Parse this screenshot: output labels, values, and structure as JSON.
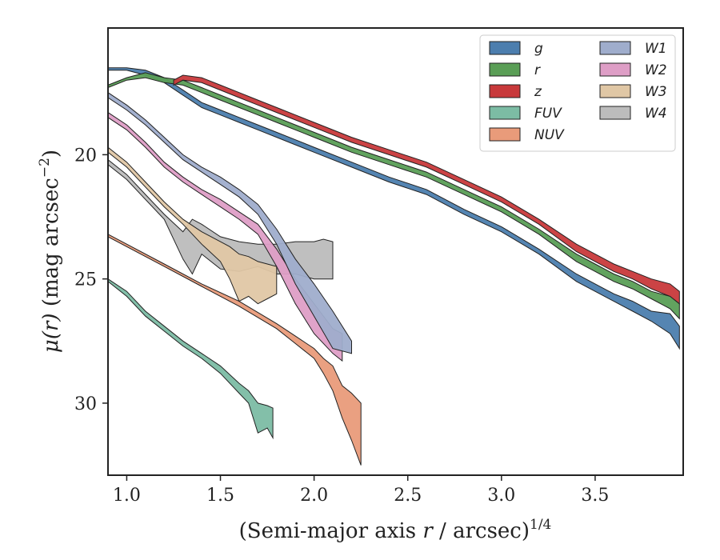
{
  "chart_data": {
    "type": "area",
    "title": "",
    "xlabel_main": "(Semi-major axis ",
    "xlabel_var": "r",
    "xlabel_rest": " / arcsec)",
    "xlabel_sup": "1/4",
    "ylabel_main": "(mag arcsec",
    "ylabel_sup": "−2",
    "ylabel_close": ")",
    "ylabel_mu": "μ(",
    "ylabel_r": "r",
    "ylabel_mu_close": ") ",
    "xlim": [
      0.9,
      3.97
    ],
    "ylim": [
      32.9,
      14.9
    ],
    "y_inverted": true,
    "xticks": [
      1.0,
      1.5,
      2.0,
      2.5,
      3.0,
      3.5
    ],
    "xtick_labels": [
      "1.0",
      "1.5",
      "2.0",
      "2.5",
      "3.0",
      "3.5"
    ],
    "yticks": [
      20,
      25,
      30
    ],
    "ytick_labels": [
      "20",
      "25",
      "30"
    ],
    "grid": false,
    "legend_placement": "top-right",
    "legend_columns": 2,
    "series": [
      {
        "name": "g",
        "color": "#4c7eae",
        "x": [
          0.9,
          1.0,
          1.1,
          1.2,
          1.3,
          1.4,
          1.5,
          1.6,
          1.7,
          1.8,
          1.9,
          2.0,
          2.2,
          2.4,
          2.6,
          2.8,
          3.0,
          3.2,
          3.4,
          3.5,
          3.6,
          3.7,
          3.8,
          3.9,
          3.95
        ],
        "y_bright": [
          16.5,
          16.5,
          16.6,
          16.9,
          17.4,
          17.9,
          18.2,
          18.5,
          18.8,
          19.1,
          19.4,
          19.7,
          20.3,
          20.9,
          21.4,
          22.2,
          22.9,
          23.8,
          24.8,
          25.2,
          25.6,
          25.9,
          26.3,
          26.4,
          26.9
        ],
        "y_faint": [
          16.6,
          16.6,
          16.8,
          17.1,
          17.6,
          18.1,
          18.4,
          18.7,
          19.0,
          19.3,
          19.6,
          19.9,
          20.5,
          21.1,
          21.6,
          22.4,
          23.1,
          24.0,
          25.1,
          25.5,
          25.9,
          26.3,
          26.7,
          27.2,
          27.8
        ]
      },
      {
        "name": "r",
        "color": "#5a9e56",
        "x": [
          0.9,
          1.0,
          1.1,
          1.2,
          1.3,
          1.4,
          1.5,
          1.6,
          1.7,
          1.8,
          1.9,
          2.0,
          2.2,
          2.4,
          2.6,
          2.8,
          3.0,
          3.2,
          3.4,
          3.5,
          3.6,
          3.7,
          3.8,
          3.9,
          3.95
        ],
        "y_bright": [
          17.2,
          16.9,
          16.7,
          16.9,
          17.0,
          17.3,
          17.6,
          17.9,
          18.2,
          18.5,
          18.8,
          19.1,
          19.7,
          20.2,
          20.7,
          21.4,
          22.1,
          23.0,
          24.0,
          24.4,
          24.8,
          25.1,
          25.5,
          25.7,
          26.0
        ],
        "y_faint": [
          17.3,
          17.0,
          16.9,
          17.1,
          17.2,
          17.5,
          17.8,
          18.1,
          18.4,
          18.7,
          19.0,
          19.3,
          19.9,
          20.4,
          20.9,
          21.6,
          22.3,
          23.2,
          24.3,
          24.7,
          25.1,
          25.4,
          25.8,
          26.2,
          26.6
        ]
      },
      {
        "name": "z",
        "color": "#c8393b",
        "x": [
          1.25,
          1.3,
          1.4,
          1.5,
          1.6,
          1.7,
          1.8,
          1.9,
          2.0,
          2.2,
          2.4,
          2.6,
          2.8,
          3.0,
          3.2,
          3.4,
          3.5,
          3.6,
          3.7,
          3.8,
          3.9,
          3.95
        ],
        "y_bright": [
          17.0,
          16.8,
          16.9,
          17.2,
          17.5,
          17.8,
          18.1,
          18.4,
          18.7,
          19.3,
          19.8,
          20.3,
          21.0,
          21.7,
          22.6,
          23.6,
          24.0,
          24.4,
          24.7,
          25.0,
          25.2,
          25.5
        ],
        "y_faint": [
          17.2,
          17.0,
          17.1,
          17.4,
          17.7,
          18.0,
          18.3,
          18.6,
          18.9,
          19.5,
          20.0,
          20.5,
          21.2,
          21.9,
          22.8,
          23.9,
          24.3,
          24.7,
          25.0,
          25.4,
          25.7,
          26.0
        ]
      },
      {
        "name": "FUV",
        "color": "#7cbca4",
        "x": [
          0.9,
          1.0,
          1.1,
          1.2,
          1.3,
          1.4,
          1.5,
          1.6,
          1.65,
          1.7,
          1.75,
          1.78
        ],
        "y_bright": [
          25.0,
          25.5,
          26.3,
          26.9,
          27.5,
          28.0,
          28.5,
          29.2,
          29.5,
          30.0,
          30.1,
          30.2
        ],
        "y_faint": [
          25.1,
          25.7,
          26.5,
          27.1,
          27.7,
          28.2,
          28.8,
          29.6,
          30.0,
          31.2,
          31.0,
          31.4
        ]
      },
      {
        "name": "NUV",
        "color": "#e99b7a",
        "x": [
          0.9,
          1.0,
          1.2,
          1.4,
          1.6,
          1.8,
          1.9,
          2.0,
          2.05,
          2.1,
          2.15,
          2.2,
          2.25
        ],
        "y_bright": [
          23.2,
          23.6,
          24.4,
          25.2,
          25.9,
          26.8,
          27.3,
          27.8,
          28.2,
          28.5,
          29.3,
          29.6,
          30.0
        ],
        "y_faint": [
          23.3,
          23.7,
          24.5,
          25.3,
          26.1,
          27.0,
          27.6,
          28.2,
          28.8,
          29.5,
          30.6,
          31.5,
          32.5
        ]
      },
      {
        "name": "W1",
        "color": "#9fadcc",
        "x": [
          0.9,
          1.0,
          1.1,
          1.2,
          1.3,
          1.4,
          1.5,
          1.6,
          1.7,
          1.8,
          1.9,
          2.0,
          2.1,
          2.2
        ],
        "y_bright": [
          17.5,
          18.0,
          18.6,
          19.3,
          20.0,
          20.5,
          20.9,
          21.4,
          22.0,
          23.0,
          24.2,
          25.2,
          26.3,
          27.5
        ],
        "y_faint": [
          17.7,
          18.2,
          18.8,
          19.5,
          20.2,
          20.7,
          21.2,
          21.7,
          22.4,
          23.6,
          25.2,
          26.5,
          27.8,
          28.0
        ]
      },
      {
        "name": "W2",
        "color": "#de9ec6",
        "x": [
          0.9,
          1.0,
          1.1,
          1.2,
          1.3,
          1.4,
          1.5,
          1.6,
          1.7,
          1.8,
          1.9,
          2.0,
          2.1,
          2.15
        ],
        "y_bright": [
          18.3,
          18.8,
          19.5,
          20.3,
          20.9,
          21.4,
          21.8,
          22.3,
          22.8,
          23.8,
          25.0,
          26.0,
          27.0,
          27.2
        ],
        "y_faint": [
          18.5,
          19.0,
          19.7,
          20.5,
          21.1,
          21.6,
          22.1,
          22.6,
          23.2,
          24.5,
          26.0,
          27.2,
          28.0,
          28.3
        ]
      },
      {
        "name": "W3",
        "color": "#e0c7a5",
        "x": [
          0.9,
          1.0,
          1.1,
          1.2,
          1.3,
          1.4,
          1.5,
          1.55,
          1.6,
          1.65,
          1.7,
          1.75,
          1.8
        ],
        "y_bright": [
          19.7,
          20.3,
          21.1,
          21.9,
          22.6,
          23.1,
          23.5,
          23.7,
          24.0,
          24.1,
          24.3,
          24.4,
          24.5
        ],
        "y_faint": [
          19.9,
          20.5,
          21.3,
          22.1,
          22.8,
          23.6,
          24.3,
          25.0,
          25.9,
          25.7,
          26.0,
          25.8,
          25.6
        ]
      },
      {
        "name": "W4",
        "color": "#bcbcbc",
        "x": [
          0.9,
          1.0,
          1.1,
          1.2,
          1.3,
          1.35,
          1.4,
          1.5,
          1.6,
          1.7,
          1.8,
          1.9,
          2.0,
          2.05,
          2.1
        ],
        "y_bright": [
          20.2,
          20.8,
          21.6,
          22.4,
          23.1,
          22.6,
          22.8,
          23.3,
          23.5,
          23.6,
          23.6,
          23.5,
          23.5,
          23.4,
          23.5
        ],
        "y_faint": [
          20.4,
          21.0,
          21.8,
          22.6,
          24.2,
          24.8,
          24.0,
          24.6,
          24.7,
          24.5,
          24.8,
          24.8,
          25.0,
          25.0,
          25.0
        ]
      }
    ]
  }
}
